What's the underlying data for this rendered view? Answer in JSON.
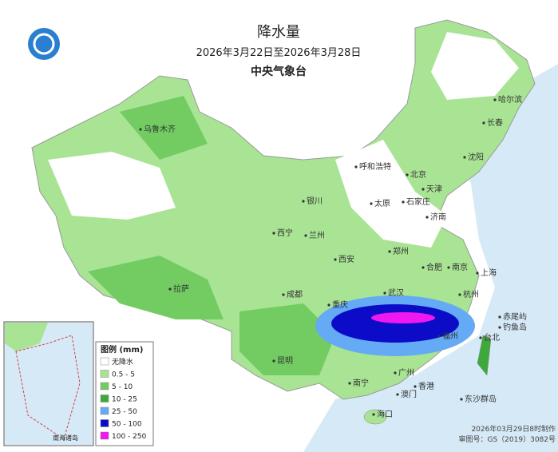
{
  "header": {
    "title": "降水量",
    "date_range": "2026年3月22日至2026年3月28日",
    "agency": "中央气象台"
  },
  "legend": {
    "title": "图例 (mm)",
    "items": [
      {
        "label": "无降水",
        "color": "#ffffff"
      },
      {
        "label": "0.5 - 5",
        "color": "#a8e494"
      },
      {
        "label": "5 - 10",
        "color": "#72cc62"
      },
      {
        "label": "10 - 25",
        "color": "#3ea83c"
      },
      {
        "label": "25 - 50",
        "color": "#64aaf4"
      },
      {
        "label": "50 - 100",
        "color": "#0c0cc8"
      },
      {
        "label": "100 - 250",
        "color": "#f018f0"
      }
    ]
  },
  "cities": [
    "乌鲁木齐",
    "哈尔滨",
    "长春",
    "沈阳",
    "呼和浩特",
    "北京",
    "天津",
    "银川",
    "太原",
    "石家庄",
    "济南",
    "西宁",
    "兰州",
    "郑州",
    "西安",
    "合肥",
    "南京",
    "上海",
    "拉萨",
    "成都",
    "武汉",
    "杭州",
    "重庆",
    "福州",
    "台北",
    "昆明",
    "南宁",
    "广州",
    "香港",
    "澳门",
    "海口",
    "钓鱼岛",
    "赤尾屿",
    "东沙群岛"
  ],
  "inset_label": "南海诸岛",
  "footer": {
    "made": "2026年03月29日8时制作",
    "approval": "审图号：GS（2019）3082号"
  }
}
